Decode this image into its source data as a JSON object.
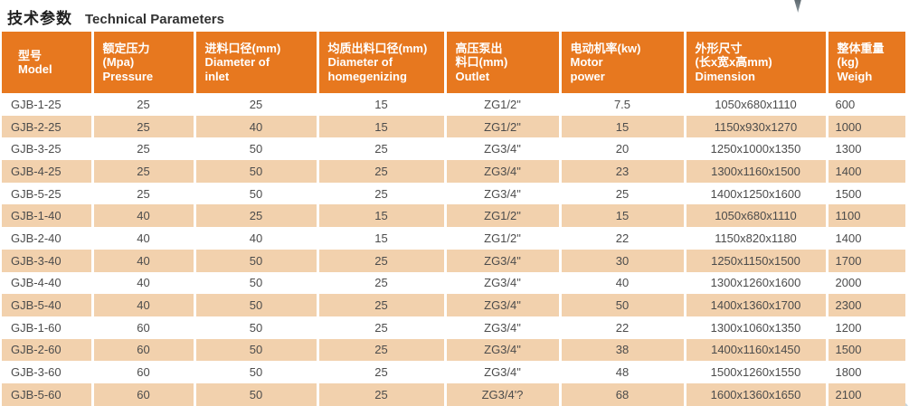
{
  "page": {
    "title_zh": "技术参数",
    "title_en": "Technical Parameters"
  },
  "colors": {
    "header_bg": "#e7781f",
    "row_alt_bg": "#f2d1ad",
    "row_bg": "#ffffff",
    "header_text": "#ffffff",
    "body_text": "#4c4c4c",
    "title_text": "#1f1f1f",
    "divider": "#ffffff",
    "needle": "#5f6a70",
    "corner": "#b9cad5"
  },
  "decorations": {
    "top_right": "needle-tip-graphic",
    "bottom_right": "corner-watermark-fragment"
  },
  "table": {
    "columns": [
      {
        "key": "model",
        "lines": [
          "型号",
          "Model"
        ]
      },
      {
        "key": "pressure",
        "lines": [
          "额定压力",
          "(Mpa)",
          "Pressure"
        ]
      },
      {
        "key": "inlet_diameter",
        "lines": [
          "进料口径(mm)",
          "Diameter of",
          "inlet"
        ]
      },
      {
        "key": "homogenizing_outlet",
        "lines": [
          "均质出料口径(mm)",
          "Diameter of",
          "homegenizing"
        ]
      },
      {
        "key": "pump_outlet",
        "lines": [
          "高压泵出",
          "料口(mm)",
          "Outlet"
        ]
      },
      {
        "key": "motor_power",
        "lines": [
          "电动机率(kw)",
          "Motor",
          "power"
        ]
      },
      {
        "key": "dimension",
        "lines": [
          "外形尺寸",
          "(长x宽x高mm)",
          "Dimension"
        ]
      },
      {
        "key": "weight",
        "lines": [
          "整体重量",
          "(kg)",
          "Weigh"
        ]
      }
    ],
    "rows": [
      [
        "GJB-1-25",
        "25",
        "25",
        "15",
        "ZG1/2\"",
        "7.5",
        "1050x680x1110",
        "600"
      ],
      [
        "GJB-2-25",
        "25",
        "40",
        "15",
        "ZG1/2\"",
        "15",
        "1150x930x1270",
        "1000"
      ],
      [
        "GJB-3-25",
        "25",
        "50",
        "25",
        "ZG3/4\"",
        "20",
        "1250x1000x1350",
        "1300"
      ],
      [
        "GJB-4-25",
        "25",
        "50",
        "25",
        "ZG3/4\"",
        "23",
        "1300x1160x1500",
        "1400"
      ],
      [
        "GJB-5-25",
        "25",
        "50",
        "25",
        "ZG3/4\"",
        "25",
        "1400x1250x1600",
        "1500"
      ],
      [
        "GJB-1-40",
        "40",
        "25",
        "15",
        "ZG1/2\"",
        "15",
        "1050x680x1110",
        "1100"
      ],
      [
        "GJB-2-40",
        "40",
        "40",
        "15",
        "ZG1/2\"",
        "22",
        "1150x820x1180",
        "1400"
      ],
      [
        "GJB-3-40",
        "40",
        "50",
        "25",
        "ZG3/4\"",
        "30",
        "1250x1150x1500",
        "1700"
      ],
      [
        "GJB-4-40",
        "40",
        "50",
        "25",
        "ZG3/4\"",
        "40",
        "1300x1260x1600",
        "2000"
      ],
      [
        "GJB-5-40",
        "40",
        "50",
        "25",
        "ZG3/4\"",
        "50",
        "1400x1360x1700",
        "2300"
      ],
      [
        "GJB-1-60",
        "60",
        "50",
        "25",
        "ZG3/4\"",
        "22",
        "1300x1060x1350",
        "1200"
      ],
      [
        "GJB-2-60",
        "60",
        "50",
        "25",
        "ZG3/4\"",
        "38",
        "1400x1160x1450",
        "1500"
      ],
      [
        "GJB-3-60",
        "60",
        "50",
        "25",
        "ZG3/4\"",
        "48",
        "1500x1260x1550",
        "1800"
      ],
      [
        "GJB-5-60",
        "60",
        "50",
        "25",
        "ZG3/4'?",
        "68",
        "1600x1360x1650",
        "2100"
      ]
    ]
  }
}
